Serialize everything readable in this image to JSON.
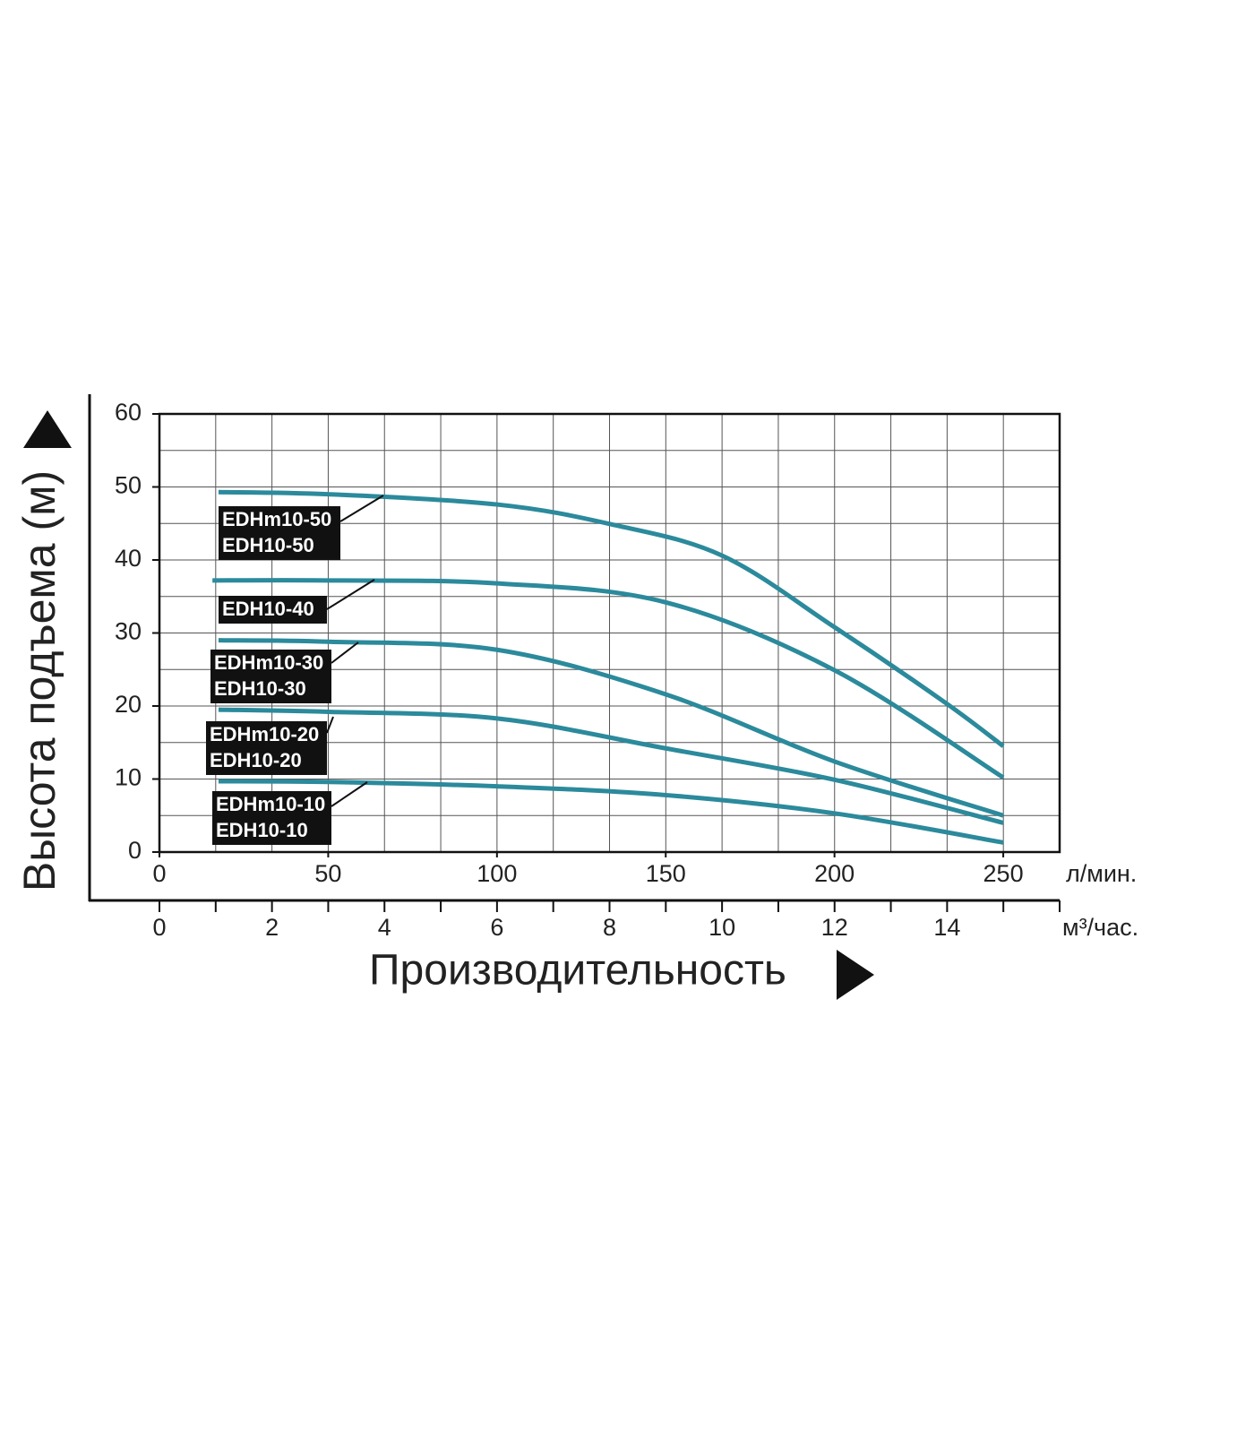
{
  "chart_data": {
    "type": "line",
    "y_label": "Высота подъема (м)",
    "x_label": "Производительность",
    "x_unit": "л/мин.",
    "x2_unit": "м³/час.",
    "xlim": [
      0,
      266.7
    ],
    "xticks": [
      0,
      50,
      100,
      150,
      200,
      250
    ],
    "x2lim": [
      0,
      16
    ],
    "x2ticks": [
      0,
      2,
      4,
      6,
      8,
      10,
      12,
      14
    ],
    "x2minor": [
      1,
      3,
      5,
      7,
      9,
      11,
      13,
      15,
      16
    ],
    "ylim": [
      0,
      60
    ],
    "yticks": [
      0,
      10,
      20,
      30,
      40,
      50,
      60
    ],
    "yminor": [
      5,
      15,
      25,
      35,
      45,
      55
    ],
    "grid": true,
    "series": [
      {
        "labels": [
          "EDHm10-50",
          "EDH10-50"
        ],
        "color": "#2b8a9c",
        "x": [
          17.5,
          50,
          100,
          133.7,
          166.7,
          200,
          233,
          250
        ],
        "values": [
          49.3,
          49,
          47.6,
          44.9,
          40.6,
          30.8,
          20.4,
          14.5
        ]
      },
      {
        "labels": [
          "EDH10-40"
        ],
        "color": "#2b8a9c",
        "x": [
          15.7,
          50,
          100,
          150,
          200,
          250
        ],
        "values": [
          37.2,
          37.2,
          36.8,
          34.2,
          24.9,
          10.2
        ]
      },
      {
        "labels": [
          "EDHm10-30",
          "EDH10-30"
        ],
        "color": "#2b8a9c",
        "x": [
          17.5,
          50,
          100,
          150,
          200,
          250
        ],
        "values": [
          29,
          28.8,
          27.7,
          21.6,
          12.4,
          5
        ]
      },
      {
        "labels": [
          "EDHm10-20",
          "EDH10-20"
        ],
        "color": "#2b8a9c",
        "x": [
          17.5,
          50,
          100,
          150,
          200,
          250
        ],
        "values": [
          19.5,
          19.2,
          18.3,
          14.2,
          9.9,
          4
        ]
      },
      {
        "labels": [
          "EDHm10-10",
          "EDH10-10"
        ],
        "color": "#2b8a9c",
        "x": [
          17.5,
          50,
          100,
          150,
          200,
          250
        ],
        "values": [
          9.7,
          9.6,
          9,
          7.8,
          5.3,
          1.3
        ]
      }
    ]
  }
}
